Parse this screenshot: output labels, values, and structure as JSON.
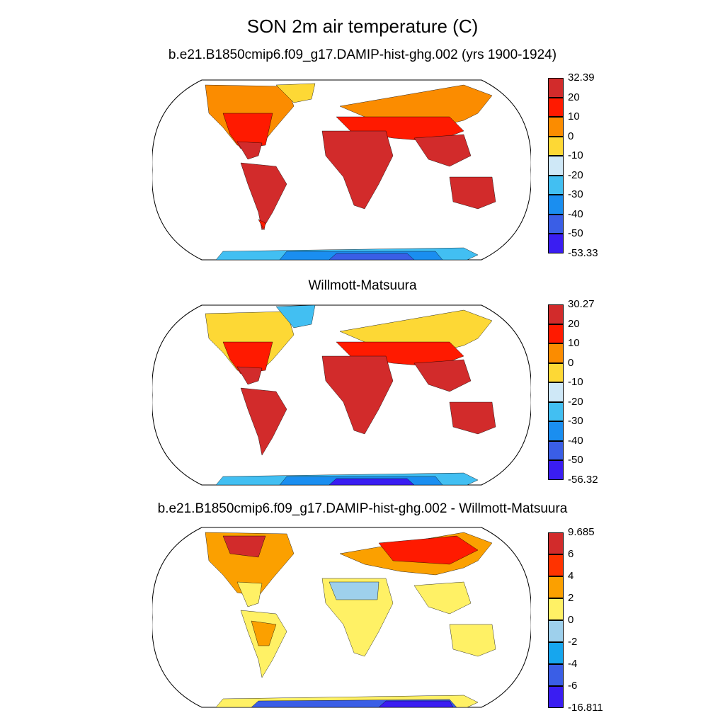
{
  "title": "SON 2m air temperature (C)",
  "panels": [
    {
      "subtitle": "b.e21.B1850cmip6.f09_g17.DAMIP-hist-ghg.002 (yrs 1900-1924)",
      "colorbar": {
        "colors": [
          "#3a1df2",
          "#3a5ee6",
          "#1a8ef0",
          "#42bff2",
          "#cfe8f7",
          "#fdd835",
          "#fb8c00",
          "#ff1a00",
          "#d22b2b"
        ],
        "labels": [
          "32.39",
          "20",
          "10",
          "0",
          "-10",
          "-20",
          "-30",
          "-40",
          "-50",
          "-53.33"
        ]
      }
    },
    {
      "subtitle": "Willmott-Matsuura",
      "colorbar": {
        "colors": [
          "#3a1df2",
          "#3a5ee6",
          "#1a8ef0",
          "#42bff2",
          "#cfe8f7",
          "#fdd835",
          "#fb8c00",
          "#ff1a00",
          "#d22b2b"
        ],
        "labels": [
          "30.27",
          "20",
          "10",
          "0",
          "-10",
          "-20",
          "-30",
          "-40",
          "-50",
          "-56.32"
        ]
      }
    },
    {
      "subtitle": "b.e21.B1850cmip6.f09_g17.DAMIP-hist-ghg.002 - Willmott-Matsuura",
      "colorbar": {
        "colors": [
          "#3a1df2",
          "#3a5ee6",
          "#16a6ee",
          "#9ed0ec",
          "#fff165",
          "#fba000",
          "#ff3300",
          "#d22b2b"
        ],
        "labels": [
          "9.685",
          "6",
          "4",
          "2",
          "0",
          "-2",
          "-4",
          "-6",
          "-16.811"
        ]
      }
    }
  ],
  "map_colors": {
    "land_hot": "#d22b2b",
    "land_warm": "#ff1a00",
    "land_mild": "#fb8c00",
    "land_cool": "#fdd835",
    "ice_light": "#42bff2",
    "ice_mid": "#1a8ef0",
    "ice_deep": "#3a5ee6",
    "ice_deepest": "#3a1df2",
    "diff_yellow": "#fff165",
    "diff_orange": "#fba000",
    "diff_blue": "#9ed0ec"
  }
}
